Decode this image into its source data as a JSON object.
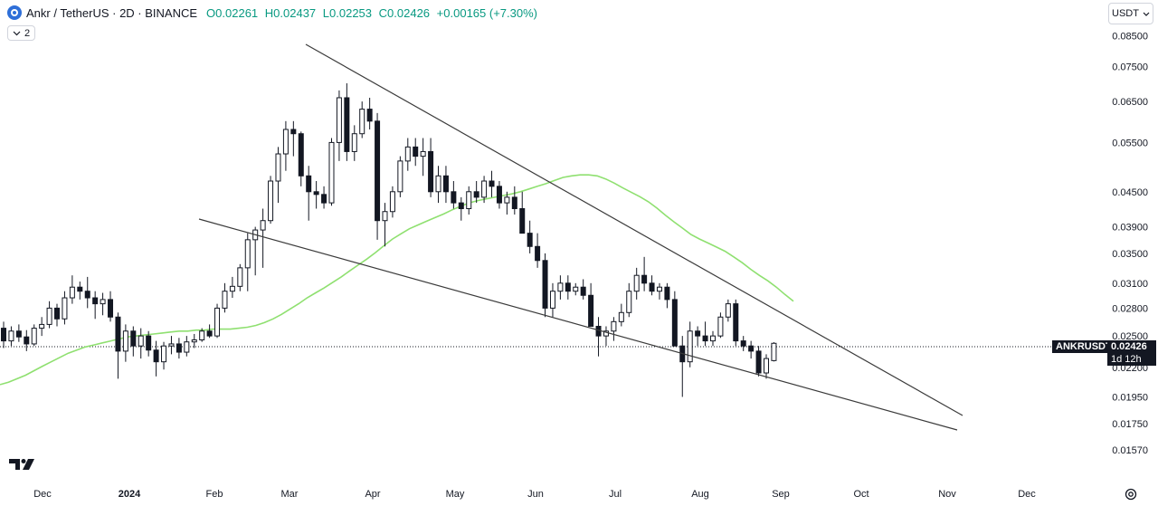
{
  "header": {
    "symbol_title": "Ankr / TetherUS · 2D · BINANCE",
    "open": "O0.02261",
    "high": "H0.02437",
    "low": "L0.02253",
    "close": "C0.02426",
    "change": "+0.00165 (+7.30%)",
    "indicator_count": "2",
    "currency": "USDT"
  },
  "price_label": {
    "ticker": "ANKRUSDT",
    "value": "0.02426",
    "countdown": "1d 12h"
  },
  "colors": {
    "up": "#ffffff",
    "down": "#131722",
    "candle_outline": "#131722",
    "ma": "#8fe070",
    "trendline": "#3b3b3b",
    "brand": "#2e6fd8"
  },
  "chart_data": {
    "type": "candlestick",
    "price_scale": "log",
    "ylim": [
      0.0152,
      0.088
    ],
    "y_ticks": [
      "0.08500",
      "0.07500",
      "0.06500",
      "0.05500",
      "0.04500",
      "0.03900",
      "0.03500",
      "0.03100",
      "0.02800",
      "0.02500",
      "0.02200",
      "0.01950",
      "0.01750",
      "0.01570"
    ],
    "x_ticks": [
      "Dec",
      "2024",
      "Feb",
      "Mar",
      "Apr",
      "May",
      "Jun",
      "Jul",
      "Aug",
      "Sep",
      "Oct",
      "Nov",
      "Dec"
    ],
    "last_price": 0.02426,
    "candles": [
      [
        0.0258,
        0.0265,
        0.0238,
        0.0245
      ],
      [
        0.0245,
        0.026,
        0.024,
        0.0255
      ],
      [
        0.0255,
        0.0262,
        0.0244,
        0.0249
      ],
      [
        0.0249,
        0.0256,
        0.0235,
        0.0242
      ],
      [
        0.0242,
        0.0262,
        0.024,
        0.0258
      ],
      [
        0.0258,
        0.027,
        0.025,
        0.0262
      ],
      [
        0.0262,
        0.0288,
        0.0258,
        0.028
      ],
      [
        0.028,
        0.0285,
        0.026,
        0.0268
      ],
      [
        0.0268,
        0.03,
        0.0262,
        0.0292
      ],
      [
        0.0292,
        0.032,
        0.0285,
        0.0305
      ],
      [
        0.0305,
        0.0312,
        0.029,
        0.03
      ],
      [
        0.03,
        0.0318,
        0.028,
        0.0292
      ],
      [
        0.0292,
        0.03,
        0.0268,
        0.0285
      ],
      [
        0.0285,
        0.0298,
        0.0272,
        0.029
      ],
      [
        0.029,
        0.03,
        0.0265,
        0.027
      ],
      [
        0.027,
        0.0275,
        0.021,
        0.0235
      ],
      [
        0.0235,
        0.0262,
        0.0225,
        0.0255
      ],
      [
        0.0255,
        0.026,
        0.023,
        0.024
      ],
      [
        0.024,
        0.0258,
        0.0228,
        0.025
      ],
      [
        0.025,
        0.0255,
        0.023,
        0.0236
      ],
      [
        0.0236,
        0.0245,
        0.0212,
        0.0225
      ],
      [
        0.0225,
        0.0244,
        0.0218,
        0.024
      ],
      [
        0.024,
        0.025,
        0.0232,
        0.0242
      ],
      [
        0.0242,
        0.0248,
        0.0228,
        0.0234
      ],
      [
        0.0234,
        0.025,
        0.023,
        0.0244
      ],
      [
        0.0244,
        0.0252,
        0.0238,
        0.0246
      ],
      [
        0.0246,
        0.0258,
        0.0244,
        0.0255
      ],
      [
        0.0255,
        0.0262,
        0.0248,
        0.025
      ],
      [
        0.025,
        0.0285,
        0.0248,
        0.028
      ],
      [
        0.028,
        0.031,
        0.0275,
        0.03
      ],
      [
        0.03,
        0.0318,
        0.0292,
        0.0306
      ],
      [
        0.0306,
        0.0335,
        0.03,
        0.033
      ],
      [
        0.033,
        0.038,
        0.03,
        0.037
      ],
      [
        0.037,
        0.039,
        0.032,
        0.0385
      ],
      [
        0.0385,
        0.042,
        0.033,
        0.04
      ],
      [
        0.04,
        0.048,
        0.0395,
        0.047
      ],
      [
        0.047,
        0.054,
        0.043,
        0.0525
      ],
      [
        0.0525,
        0.06,
        0.049,
        0.058
      ],
      [
        0.058,
        0.06,
        0.052,
        0.057
      ],
      [
        0.057,
        0.0575,
        0.046,
        0.048
      ],
      [
        0.048,
        0.05,
        0.04,
        0.045
      ],
      [
        0.045,
        0.047,
        0.042,
        0.0445
      ],
      [
        0.0445,
        0.046,
        0.042,
        0.043
      ],
      [
        0.043,
        0.056,
        0.0425,
        0.055
      ],
      [
        0.055,
        0.068,
        0.051,
        0.066
      ],
      [
        0.066,
        0.07,
        0.051,
        0.053
      ],
      [
        0.053,
        0.059,
        0.051,
        0.057
      ],
      [
        0.057,
        0.065,
        0.056,
        0.063
      ],
      [
        0.063,
        0.066,
        0.058,
        0.06
      ],
      [
        0.06,
        0.062,
        0.037,
        0.04
      ],
      [
        0.04,
        0.043,
        0.036,
        0.0415
      ],
      [
        0.0415,
        0.046,
        0.0405,
        0.045
      ],
      [
        0.045,
        0.052,
        0.044,
        0.051
      ],
      [
        0.051,
        0.056,
        0.049,
        0.054
      ],
      [
        0.054,
        0.056,
        0.05,
        0.052
      ],
      [
        0.052,
        0.056,
        0.048,
        0.053
      ],
      [
        0.053,
        0.056,
        0.044,
        0.045
      ],
      [
        0.045,
        0.05,
        0.043,
        0.048
      ],
      [
        0.048,
        0.05,
        0.043,
        0.045
      ],
      [
        0.045,
        0.047,
        0.042,
        0.043
      ],
      [
        0.043,
        0.044,
        0.04,
        0.042
      ],
      [
        0.042,
        0.046,
        0.041,
        0.045
      ],
      [
        0.045,
        0.047,
        0.043,
        0.044
      ],
      [
        0.044,
        0.048,
        0.043,
        0.047
      ],
      [
        0.047,
        0.049,
        0.044,
        0.046
      ],
      [
        0.046,
        0.047,
        0.042,
        0.043
      ],
      [
        0.043,
        0.045,
        0.041,
        0.044
      ],
      [
        0.044,
        0.046,
        0.041,
        0.042
      ],
      [
        0.042,
        0.045,
        0.038,
        0.038
      ],
      [
        0.038,
        0.04,
        0.035,
        0.036
      ],
      [
        0.036,
        0.038,
        0.033,
        0.034
      ],
      [
        0.034,
        0.035,
        0.027,
        0.028
      ],
      [
        0.028,
        0.031,
        0.027,
        0.03
      ],
      [
        0.03,
        0.032,
        0.029,
        0.031
      ],
      [
        0.031,
        0.032,
        0.029,
        0.03
      ],
      [
        0.03,
        0.031,
        0.0295,
        0.0305
      ],
      [
        0.0305,
        0.0315,
        0.029,
        0.0295
      ],
      [
        0.0295,
        0.031,
        0.026,
        0.026
      ],
      [
        0.026,
        0.027,
        0.023,
        0.025
      ],
      [
        0.025,
        0.026,
        0.024,
        0.0255
      ],
      [
        0.0255,
        0.027,
        0.0245,
        0.0265
      ],
      [
        0.0265,
        0.0285,
        0.026,
        0.0275
      ],
      [
        0.0275,
        0.031,
        0.027,
        0.03
      ],
      [
        0.03,
        0.033,
        0.029,
        0.032
      ],
      [
        0.032,
        0.0345,
        0.03,
        0.031
      ],
      [
        0.031,
        0.032,
        0.0295,
        0.03
      ],
      [
        0.03,
        0.031,
        0.029,
        0.0305
      ],
      [
        0.0305,
        0.031,
        0.028,
        0.029
      ],
      [
        0.029,
        0.03,
        0.024,
        0.024
      ],
      [
        0.024,
        0.025,
        0.0195,
        0.0225
      ],
      [
        0.0225,
        0.0265,
        0.022,
        0.0255
      ],
      [
        0.0255,
        0.026,
        0.024,
        0.025
      ],
      [
        0.025,
        0.0265,
        0.024,
        0.0245
      ],
      [
        0.0245,
        0.0255,
        0.024,
        0.025
      ],
      [
        0.025,
        0.0275,
        0.0248,
        0.027
      ],
      [
        0.027,
        0.029,
        0.0265,
        0.0285
      ],
      [
        0.0285,
        0.029,
        0.024,
        0.0245
      ],
      [
        0.0245,
        0.025,
        0.0235,
        0.024
      ],
      [
        0.024,
        0.0245,
        0.0228,
        0.0235
      ],
      [
        0.0235,
        0.024,
        0.0212,
        0.0215
      ],
      [
        0.0215,
        0.0232,
        0.021,
        0.0228
      ],
      [
        0.02261,
        0.02437,
        0.02253,
        0.02426
      ]
    ],
    "moving_average": [
      0.0205,
      0.0207,
      0.021,
      0.0213,
      0.0217,
      0.0221,
      0.0225,
      0.0229,
      0.0233,
      0.0236,
      0.0239,
      0.0241,
      0.0243,
      0.0245,
      0.0247,
      0.0249,
      0.025,
      0.0251,
      0.0252,
      0.0253,
      0.0254,
      0.0255,
      0.0255,
      0.0256,
      0.0256,
      0.0257,
      0.0257,
      0.0257,
      0.0258,
      0.0259,
      0.0261,
      0.0264,
      0.0268,
      0.0273,
      0.0279,
      0.0285,
      0.0292,
      0.0298,
      0.0304,
      0.0311,
      0.0318,
      0.0326,
      0.0334,
      0.0342,
      0.0351,
      0.0361,
      0.0371,
      0.0379,
      0.0387,
      0.0393,
      0.0399,
      0.0405,
      0.0411,
      0.0418,
      0.0424,
      0.043,
      0.0434,
      0.0437,
      0.044,
      0.0443,
      0.0446,
      0.045,
      0.0455,
      0.046,
      0.0465,
      0.0471,
      0.0477,
      0.048,
      0.0482,
      0.0482,
      0.048,
      0.0474,
      0.0466,
      0.0457,
      0.0449,
      0.0441,
      0.0432,
      0.0421,
      0.0409,
      0.0398,
      0.0388,
      0.0378,
      0.0371,
      0.0365,
      0.0359,
      0.0353,
      0.0345,
      0.0337,
      0.0328,
      0.032,
      0.0313,
      0.0305,
      0.0296,
      0.0288
    ]
  }
}
